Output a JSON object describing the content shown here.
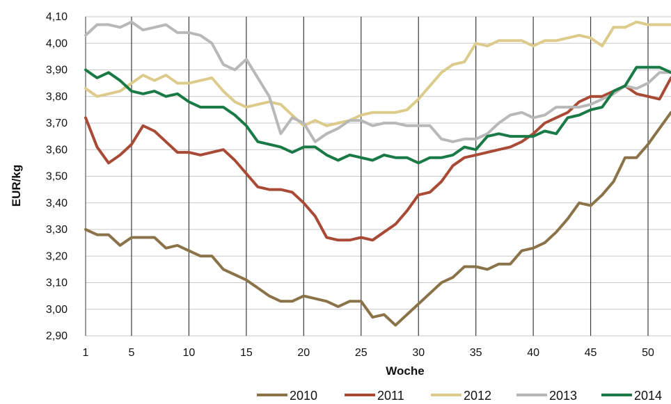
{
  "chart_data": {
    "type": "line",
    "title": "",
    "xlabel": "Woche",
    "ylabel": "EUR/kg",
    "xlim": [
      1,
      52
    ],
    "ylim": [
      2.9,
      4.1
    ],
    "xticks": [
      1,
      5,
      10,
      15,
      20,
      25,
      30,
      35,
      40,
      45,
      50
    ],
    "yticks": [
      "2,90",
      "3,00",
      "3,10",
      "3,20",
      "3,30",
      "3,40",
      "3,50",
      "3,60",
      "3,70",
      "3,80",
      "3,90",
      "4,00",
      "4,10"
    ],
    "grid": "horizontal and vertical every 5 weeks",
    "legend": "bottom-right",
    "series": [
      {
        "name": "2010",
        "color": "#8b7349",
        "values": [
          3.3,
          3.28,
          3.28,
          3.24,
          3.27,
          3.27,
          3.27,
          3.23,
          3.24,
          3.22,
          3.2,
          3.2,
          3.15,
          3.13,
          3.11,
          3.08,
          3.05,
          3.03,
          3.03,
          3.05,
          3.04,
          3.03,
          3.01,
          3.03,
          3.03,
          2.97,
          2.98,
          2.94,
          2.98,
          3.02,
          3.06,
          3.1,
          3.12,
          3.16,
          3.16,
          3.15,
          3.17,
          3.17,
          3.22,
          3.23,
          3.25,
          3.29,
          3.34,
          3.4,
          3.39,
          3.43,
          3.48,
          3.57,
          3.57,
          3.62,
          3.68,
          3.74
        ]
      },
      {
        "name": "2011",
        "color": "#a84a35",
        "values": [
          3.72,
          3.61,
          3.55,
          3.58,
          3.62,
          3.69,
          3.67,
          3.63,
          3.59,
          3.59,
          3.58,
          3.59,
          3.6,
          3.56,
          3.51,
          3.46,
          3.45,
          3.45,
          3.44,
          3.4,
          3.35,
          3.27,
          3.26,
          3.26,
          3.27,
          3.26,
          3.29,
          3.32,
          3.37,
          3.43,
          3.44,
          3.48,
          3.54,
          3.57,
          3.58,
          3.59,
          3.6,
          3.61,
          3.63,
          3.66,
          3.7,
          3.72,
          3.74,
          3.78,
          3.8,
          3.8,
          3.82,
          3.84,
          3.81,
          3.8,
          3.79,
          3.87
        ]
      },
      {
        "name": "2012",
        "color": "#dccb8a",
        "values": [
          3.83,
          3.8,
          3.81,
          3.82,
          3.85,
          3.88,
          3.86,
          3.88,
          3.85,
          3.85,
          3.86,
          3.87,
          3.82,
          3.78,
          3.76,
          3.77,
          3.78,
          3.77,
          3.73,
          3.69,
          3.71,
          3.69,
          3.7,
          3.71,
          3.73,
          3.74,
          3.74,
          3.74,
          3.75,
          3.79,
          3.84,
          3.89,
          3.92,
          3.93,
          4.0,
          3.99,
          4.01,
          4.01,
          4.01,
          3.99,
          4.01,
          4.01,
          4.02,
          4.03,
          4.02,
          3.99,
          4.06,
          4.06,
          4.08,
          4.07,
          4.07,
          4.07
        ]
      },
      {
        "name": "2013",
        "color": "#b8b8b8",
        "values": [
          4.03,
          4.07,
          4.07,
          4.06,
          4.08,
          4.05,
          4.06,
          4.07,
          4.04,
          4.04,
          4.03,
          4.0,
          3.92,
          3.9,
          3.94,
          3.87,
          3.8,
          3.66,
          3.72,
          3.7,
          3.63,
          3.66,
          3.68,
          3.71,
          3.71,
          3.69,
          3.7,
          3.7,
          3.69,
          3.69,
          3.69,
          3.64,
          3.63,
          3.64,
          3.64,
          3.66,
          3.7,
          3.73,
          3.74,
          3.72,
          3.73,
          3.76,
          3.76,
          3.76,
          3.77,
          3.79,
          3.81,
          3.84,
          3.83,
          3.85,
          3.89,
          3.89
        ]
      },
      {
        "name": "2014",
        "color": "#1a7a45",
        "values": [
          3.9,
          3.87,
          3.89,
          3.86,
          3.82,
          3.81,
          3.82,
          3.8,
          3.81,
          3.78,
          3.76,
          3.76,
          3.76,
          3.73,
          3.69,
          3.63,
          3.62,
          3.61,
          3.59,
          3.61,
          3.61,
          3.58,
          3.56,
          3.58,
          3.57,
          3.56,
          3.58,
          3.57,
          3.57,
          3.55,
          3.57,
          3.57,
          3.58,
          3.61,
          3.6,
          3.65,
          3.66,
          3.65,
          3.65,
          3.65,
          3.67,
          3.66,
          3.72,
          3.73,
          3.75,
          3.76,
          3.82,
          3.84,
          3.91,
          3.91,
          3.91,
          3.89
        ]
      }
    ]
  }
}
